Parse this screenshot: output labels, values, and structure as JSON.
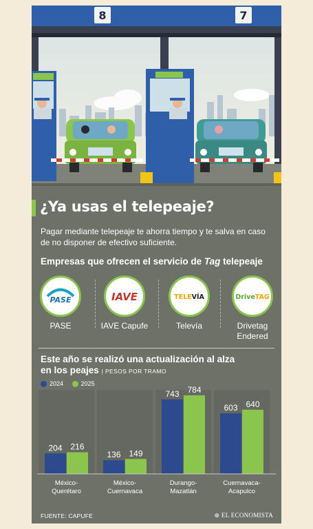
{
  "booths": [
    "8",
    "7"
  ],
  "headline": "¿Ya usas el telepeaje?",
  "subtitle": "Pagar mediante telepeaje te ahorra tiempo y te salva en caso de no disponer de efectivo suficiente.",
  "companies_heading": {
    "before": "Empresas que ofrecen el servicio de ",
    "italic": "Tag",
    "after": " telepeaje"
  },
  "companies": [
    {
      "name": "PASE",
      "logo_text": "PASE",
      "logo_icon": "pase-logo-icon"
    },
    {
      "name": "IAVE Capufe",
      "logo_text": "IAVE",
      "logo_icon": "iave-logo-icon"
    },
    {
      "name": "Televía",
      "logo_text_a": "TELE",
      "logo_text_b": "VÍA",
      "logo_icon": "televia-logo-icon"
    },
    {
      "name": "Drivetag Endered",
      "logo_text_a": "Drive",
      "logo_text_b": "TAG",
      "logo_icon": "drivetag-logo-icon"
    }
  ],
  "chart_data": {
    "type": "bar",
    "title": "Este año se realizó una actualización al alza en los peajes",
    "unit_label": "PESOS POR TRAMO",
    "categories": [
      "México-Querétaro",
      "México-Cuernavaca",
      "Durango-Mazatlán",
      "Cuernavaca-Acapulco"
    ],
    "category_lines": [
      [
        "México-",
        "Querétaro"
      ],
      [
        "México-",
        "Cuernavaca"
      ],
      [
        "Durango-",
        "Mazatlán"
      ],
      [
        "Cuernavaca-",
        "Acapulco"
      ]
    ],
    "series": [
      {
        "name": "2024",
        "color": "#2e4a8f",
        "values": [
          204,
          136,
          743,
          603
        ]
      },
      {
        "name": "2025",
        "color": "#8cc54e",
        "values": [
          216,
          149,
          784,
          640
        ]
      }
    ],
    "ylim": [
      0,
      800
    ],
    "grid": false,
    "legend_position": "top-left"
  },
  "source": "FUENTE: CAPUFE",
  "brand": "EL ECONOMISTA",
  "colors": {
    "background": "#6d7168",
    "accent": "#8cc54e",
    "navy": "#2e4a8f",
    "booth_blue": "#2e5fa8"
  }
}
